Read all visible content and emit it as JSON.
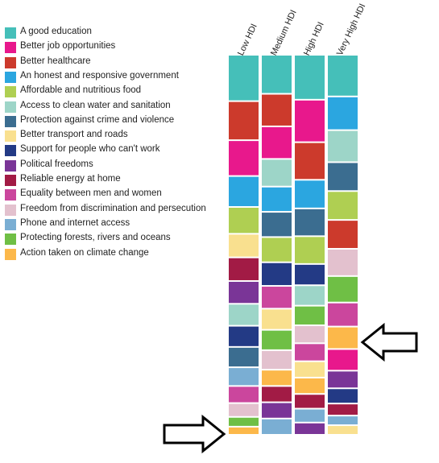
{
  "chart_data": {
    "type": "stacked-bar-ranking",
    "columns": [
      "Low HDI",
      "Medium HDI",
      "High HDI",
      "Very High HDI"
    ],
    "categories": [
      {
        "label": "A good education",
        "color": "#45BFB9"
      },
      {
        "label": "Better job opportunities",
        "color": "#E8188C"
      },
      {
        "label": "Better healthcare",
        "color": "#CC3A2C"
      },
      {
        "label": "An honest and responsive government",
        "color": "#2BA6E0"
      },
      {
        "label": "Affordable and nutritious food",
        "color": "#AFCF52"
      },
      {
        "label": "Access to clean water and sanitation",
        "color": "#9DD5C8"
      },
      {
        "label": "Protection against crime and violence",
        "color": "#3B6D90"
      },
      {
        "label": "Better transport and roads",
        "color": "#F9E08F"
      },
      {
        "label": "Support for people who can't work",
        "color": "#233A85"
      },
      {
        "label": "Political freedoms",
        "color": "#7A3597"
      },
      {
        "label": "Reliable energy at home",
        "color": "#A21B45"
      },
      {
        "label": "Equality between men and women",
        "color": "#CB469D"
      },
      {
        "label": "Freedom from discrimination and persecution",
        "color": "#E3C1CE"
      },
      {
        "label": "Phone and internet access",
        "color": "#7AAED3"
      },
      {
        "label": "Protecting forests, rivers and oceans",
        "color": "#6FBF45"
      },
      {
        "label": "Action taken on climate change",
        "color": "#FCB84A"
      }
    ],
    "stacks": [
      [
        {
          "category": 0,
          "value": 57
        },
        {
          "category": 2,
          "value": 48
        },
        {
          "category": 1,
          "value": 44
        },
        {
          "category": 3,
          "value": 38
        },
        {
          "category": 4,
          "value": 33
        },
        {
          "category": 7,
          "value": 29
        },
        {
          "category": 10,
          "value": 29
        },
        {
          "category": 9,
          "value": 28
        },
        {
          "category": 5,
          "value": 27
        },
        {
          "category": 8,
          "value": 26
        },
        {
          "category": 6,
          "value": 25
        },
        {
          "category": 13,
          "value": 23
        },
        {
          "category": 11,
          "value": 21
        },
        {
          "category": 12,
          "value": 17
        },
        {
          "category": 14,
          "value": 12
        },
        {
          "category": 15,
          "value": 10
        }
      ],
      [
        {
          "category": 0,
          "value": 48
        },
        {
          "category": 2,
          "value": 40
        },
        {
          "category": 1,
          "value": 40
        },
        {
          "category": 5,
          "value": 34
        },
        {
          "category": 3,
          "value": 31
        },
        {
          "category": 6,
          "value": 31
        },
        {
          "category": 4,
          "value": 31
        },
        {
          "category": 8,
          "value": 29
        },
        {
          "category": 11,
          "value": 28
        },
        {
          "category": 7,
          "value": 26
        },
        {
          "category": 14,
          "value": 25
        },
        {
          "category": 12,
          "value": 24
        },
        {
          "category": 15,
          "value": 20
        },
        {
          "category": 10,
          "value": 20
        },
        {
          "category": 9,
          "value": 20
        },
        {
          "category": 13,
          "value": 20
        }
      ],
      [
        {
          "category": 0,
          "value": 55
        },
        {
          "category": 1,
          "value": 52
        },
        {
          "category": 2,
          "value": 46
        },
        {
          "category": 3,
          "value": 35
        },
        {
          "category": 6,
          "value": 34
        },
        {
          "category": 4,
          "value": 34
        },
        {
          "category": 8,
          "value": 26
        },
        {
          "category": 5,
          "value": 25
        },
        {
          "category": 14,
          "value": 24
        },
        {
          "category": 12,
          "value": 22
        },
        {
          "category": 11,
          "value": 22
        },
        {
          "category": 7,
          "value": 20
        },
        {
          "category": 15,
          "value": 20
        },
        {
          "category": 10,
          "value": 18
        },
        {
          "category": 13,
          "value": 17
        },
        {
          "category": 9,
          "value": 15
        }
      ],
      [
        {
          "category": 0,
          "value": 52
        },
        {
          "category": 3,
          "value": 42
        },
        {
          "category": 5,
          "value": 40
        },
        {
          "category": 6,
          "value": 36
        },
        {
          "category": 4,
          "value": 36
        },
        {
          "category": 2,
          "value": 36
        },
        {
          "category": 12,
          "value": 34
        },
        {
          "category": 14,
          "value": 33
        },
        {
          "category": 11,
          "value": 30
        },
        {
          "category": 15,
          "value": 28
        },
        {
          "category": 1,
          "value": 27
        },
        {
          "category": 9,
          "value": 22
        },
        {
          "category": 8,
          "value": 19
        },
        {
          "category": 10,
          "value": 15
        },
        {
          "category": 13,
          "value": 12
        },
        {
          "category": 7,
          "value": 12
        }
      ]
    ],
    "annotations": [
      "arrow-pointing-left-very-high-hdi-climate",
      "arrow-pointing-right-low-hdi-climate"
    ]
  }
}
